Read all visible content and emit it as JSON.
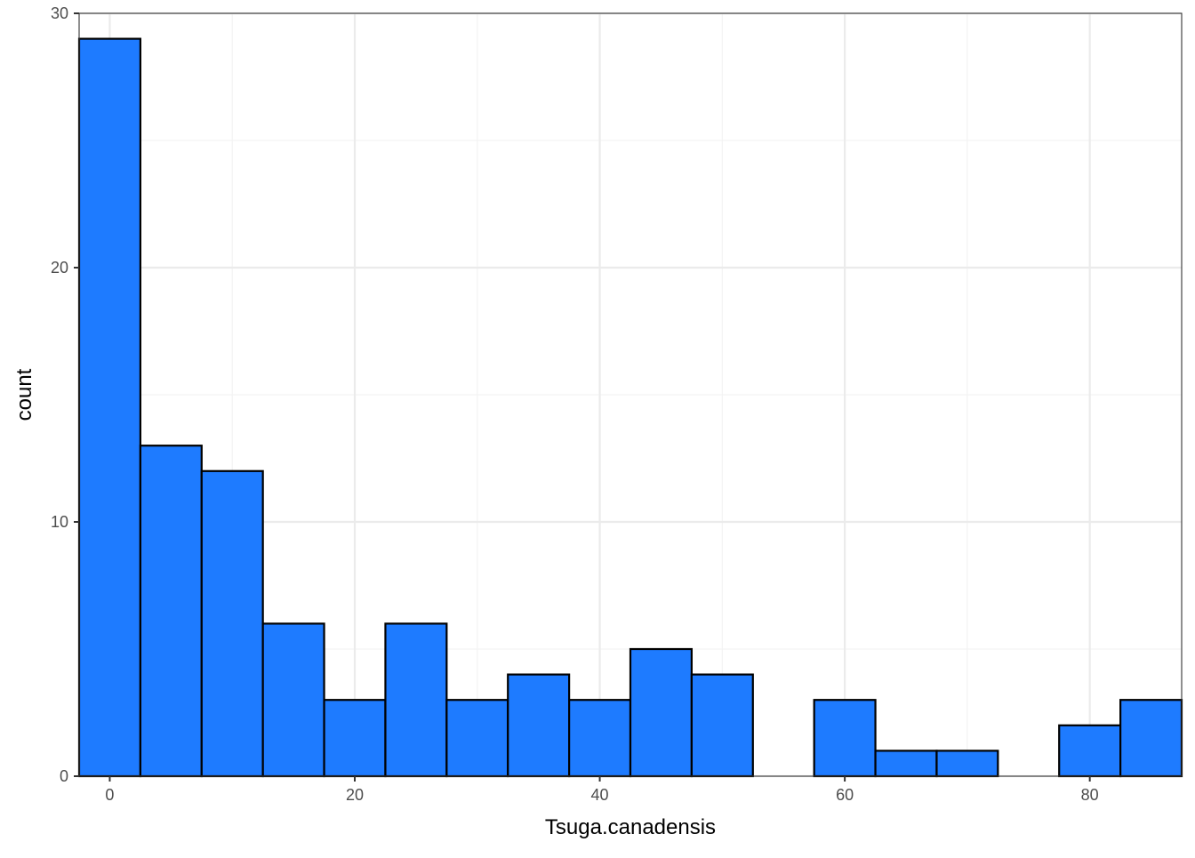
{
  "chart_data": {
    "type": "bar",
    "xlabel": "Tsuga.canadensis",
    "ylabel": "count",
    "xlim": [
      -2.5,
      87.5
    ],
    "ylim": [
      0,
      30
    ],
    "bin_width": 5,
    "bins": [
      {
        "start": -2.5,
        "end": 2.5,
        "count": 29
      },
      {
        "start": 2.5,
        "end": 7.5,
        "count": 13
      },
      {
        "start": 7.5,
        "end": 12.5,
        "count": 12
      },
      {
        "start": 12.5,
        "end": 17.5,
        "count": 6
      },
      {
        "start": 17.5,
        "end": 22.5,
        "count": 3
      },
      {
        "start": 22.5,
        "end": 27.5,
        "count": 6
      },
      {
        "start": 27.5,
        "end": 32.5,
        "count": 3
      },
      {
        "start": 32.5,
        "end": 37.5,
        "count": 4
      },
      {
        "start": 37.5,
        "end": 42.5,
        "count": 3
      },
      {
        "start": 42.5,
        "end": 47.5,
        "count": 5
      },
      {
        "start": 47.5,
        "end": 52.5,
        "count": 4
      },
      {
        "start": 52.5,
        "end": 57.5,
        "count": 0
      },
      {
        "start": 57.5,
        "end": 62.5,
        "count": 3
      },
      {
        "start": 62.5,
        "end": 67.5,
        "count": 1
      },
      {
        "start": 67.5,
        "end": 72.5,
        "count": 1
      },
      {
        "start": 72.5,
        "end": 77.5,
        "count": 0
      },
      {
        "start": 77.5,
        "end": 82.5,
        "count": 2
      },
      {
        "start": 82.5,
        "end": 87.5,
        "count": 3
      }
    ],
    "x_ticks": [
      0,
      20,
      40,
      60,
      80
    ],
    "x_tick_labels": [
      "0",
      "20",
      "40",
      "60",
      "80"
    ],
    "x_minor_ticks": [
      10,
      30,
      50,
      70
    ],
    "y_ticks": [
      0,
      10,
      20,
      30
    ],
    "y_tick_labels": [
      "0",
      "10",
      "20",
      "30"
    ],
    "y_minor_ticks": [
      5,
      15,
      25
    ],
    "grid": true,
    "legend": "none",
    "colors": {
      "bar_fill": "#1E7BFF",
      "bar_outline": "#000000",
      "grid_major": "#EBEBEB",
      "grid_minor": "#F2F2F2",
      "panel_border": "#333333",
      "background": "#FFFFFF"
    }
  }
}
